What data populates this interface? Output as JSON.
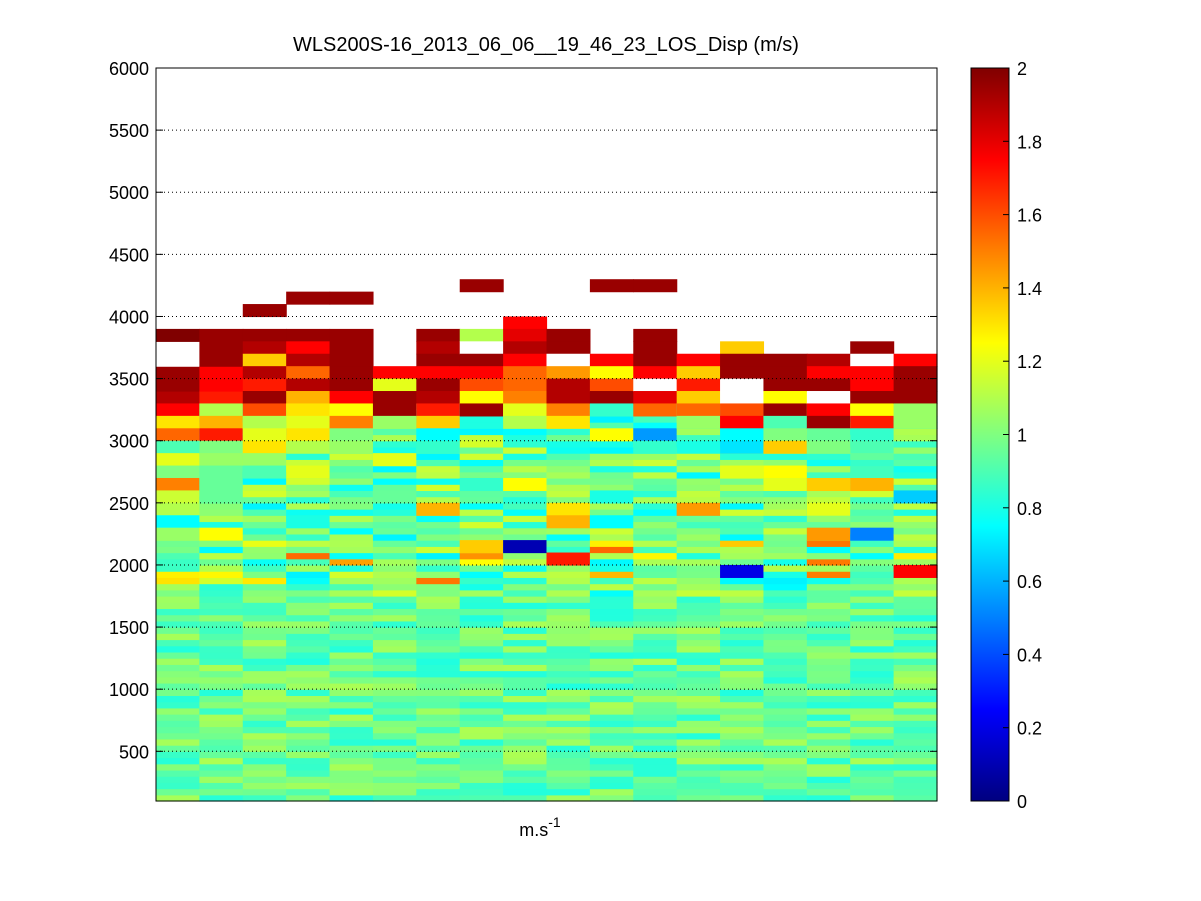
{
  "chart_data": {
    "type": "heatmap",
    "title": "WLS200S-16_2013_06_06__19_46_23_LOS_Disp (m/s)",
    "xlabel_base": "m.s",
    "xlabel_exp": "-1",
    "ylabel": "",
    "ylim": [
      100,
      6000
    ],
    "yticks": [
      500,
      1000,
      1500,
      2000,
      2500,
      3000,
      3500,
      4000,
      4500,
      5000,
      5500,
      6000
    ],
    "y_grid": "dotted",
    "colormap": "jet",
    "color_range": [
      0,
      2
    ],
    "colorbar_ticks": [
      0,
      0.2,
      0.4,
      0.6,
      0.8,
      1,
      1.2,
      1.4,
      1.6,
      1.8,
      2
    ],
    "colorbar_position": "right",
    "columns": 18,
    "grid": [
      {
        "column": 1,
        "range_bins": [
          [
            3300,
            3400,
            1.9
          ],
          [
            3400,
            3600,
            1.95
          ],
          [
            3600,
            3800,
            null
          ],
          [
            3800,
            3900,
            2.0
          ],
          [
            3200,
            3300,
            1.75
          ],
          [
            3100,
            3200,
            1.3
          ],
          [
            3000,
            3100,
            1.55
          ],
          [
            2900,
            3000,
            0.9
          ],
          [
            2800,
            2900,
            1.2
          ],
          [
            2700,
            2800,
            1.0
          ],
          [
            2600,
            2700,
            1.5
          ],
          [
            2500,
            2600,
            1.15
          ],
          [
            2400,
            2500,
            1.1
          ],
          [
            2300,
            2400,
            0.75
          ],
          [
            2200,
            2300,
            1.05
          ]
        ]
      },
      {
        "column": 2,
        "range_bins": [
          [
            3300,
            3400,
            1.7
          ],
          [
            3400,
            3600,
            1.75
          ],
          [
            3600,
            3900,
            1.95
          ],
          [
            3200,
            3300,
            1.1
          ],
          [
            3100,
            3200,
            1.4
          ],
          [
            3000,
            3100,
            1.7
          ],
          [
            2900,
            3000,
            1.0
          ],
          [
            2800,
            2900,
            1.05
          ],
          [
            2500,
            2800,
            0.95
          ],
          [
            2200,
            2300,
            1.25
          ]
        ]
      },
      {
        "column": 3,
        "range_bins": [
          [
            4000,
            4100,
            1.95
          ],
          [
            3800,
            3900,
            1.95
          ],
          [
            3700,
            3800,
            1.9
          ],
          [
            3600,
            3700,
            1.35
          ],
          [
            3500,
            3600,
            1.9
          ],
          [
            3400,
            3500,
            1.7
          ],
          [
            3300,
            3400,
            1.95
          ],
          [
            3200,
            3300,
            1.6
          ],
          [
            3100,
            3200,
            1.1
          ],
          [
            3000,
            3100,
            1.2
          ],
          [
            2900,
            3000,
            1.3
          ],
          [
            2800,
            2900,
            1.05
          ],
          [
            2700,
            2800,
            0.9
          ]
        ]
      },
      {
        "column": 4,
        "range_bins": [
          [
            4100,
            4200,
            1.95
          ],
          [
            3800,
            3900,
            1.95
          ],
          [
            3700,
            3800,
            1.75
          ],
          [
            3600,
            3700,
            1.9
          ],
          [
            3500,
            3600,
            1.55
          ],
          [
            3400,
            3500,
            1.9
          ],
          [
            3300,
            3400,
            1.4
          ],
          [
            3200,
            3300,
            1.3
          ],
          [
            3100,
            3200,
            1.2
          ],
          [
            3000,
            3100,
            1.3
          ],
          [
            2900,
            3000,
            1.1
          ],
          [
            2700,
            2800,
            1.2
          ],
          [
            2300,
            2400,
            0.8
          ]
        ]
      },
      {
        "column": 5,
        "range_bins": [
          [
            4100,
            4200,
            1.95
          ],
          [
            3600,
            3900,
            1.95
          ],
          [
            3400,
            3600,
            1.95
          ],
          [
            3300,
            3400,
            1.75
          ],
          [
            3200,
            3300,
            1.25
          ],
          [
            3100,
            3200,
            1.5
          ],
          [
            3000,
            3100,
            1.0
          ],
          [
            2900,
            3000,
            1.05
          ]
        ]
      },
      {
        "column": 6,
        "range_bins": [
          [
            3500,
            3600,
            1.75
          ],
          [
            3400,
            3500,
            1.2
          ],
          [
            3300,
            3400,
            1.95
          ],
          [
            3200,
            3300,
            1.95
          ],
          [
            3100,
            3200,
            1.05
          ],
          [
            2800,
            2900,
            1.2
          ],
          [
            2500,
            2600,
            0.95
          ]
        ]
      },
      {
        "column": 7,
        "range_bins": [
          [
            3800,
            3900,
            1.95
          ],
          [
            3700,
            3800,
            1.9
          ],
          [
            3600,
            3700,
            1.95
          ],
          [
            3500,
            3600,
            1.75
          ],
          [
            3400,
            3500,
            1.95
          ],
          [
            3300,
            3400,
            1.9
          ],
          [
            3200,
            3300,
            1.7
          ],
          [
            3100,
            3200,
            1.35
          ],
          [
            3000,
            3100,
            0.75
          ],
          [
            2900,
            3000,
            0.85
          ],
          [
            2400,
            2500,
            1.4
          ]
        ]
      },
      {
        "column": 8,
        "range_bins": [
          [
            4200,
            4300,
            1.95
          ],
          [
            3800,
            3900,
            1.1
          ],
          [
            3700,
            3800,
            null
          ],
          [
            3600,
            3700,
            1.95
          ],
          [
            3500,
            3600,
            1.75
          ],
          [
            3400,
            3500,
            1.6
          ],
          [
            3300,
            3400,
            1.25
          ],
          [
            3200,
            3300,
            1.95
          ],
          [
            2600,
            2700,
            0.85
          ],
          [
            2100,
            2200,
            1.35
          ]
        ]
      },
      {
        "column": 9,
        "range_bins": [
          [
            3900,
            4000,
            1.75
          ],
          [
            3800,
            3900,
            1.8
          ],
          [
            3700,
            3800,
            1.9
          ],
          [
            3600,
            3700,
            1.75
          ],
          [
            3400,
            3600,
            1.55
          ],
          [
            3300,
            3400,
            1.5
          ],
          [
            3200,
            3300,
            1.2
          ],
          [
            3100,
            3200,
            1.1
          ],
          [
            2600,
            2700,
            1.25
          ],
          [
            2100,
            2200,
            0.1
          ]
        ]
      },
      {
        "column": 10,
        "range_bins": [
          [
            3800,
            3900,
            1.95
          ],
          [
            3700,
            3800,
            1.95
          ],
          [
            3600,
            3700,
            null
          ],
          [
            3500,
            3600,
            1.45
          ],
          [
            3300,
            3500,
            1.9
          ],
          [
            3200,
            3300,
            1.5
          ],
          [
            3100,
            3200,
            1.3
          ],
          [
            2400,
            2500,
            1.3
          ],
          [
            2300,
            2400,
            1.4
          ],
          [
            2000,
            2100,
            1.7
          ]
        ]
      },
      {
        "column": 11,
        "range_bins": [
          [
            4200,
            4300,
            1.95
          ],
          [
            3600,
            3700,
            1.75
          ],
          [
            3500,
            3600,
            1.25
          ],
          [
            3400,
            3500,
            1.6
          ],
          [
            3300,
            3400,
            1.95
          ],
          [
            3200,
            3300,
            0.85
          ],
          [
            3000,
            3100,
            1.25
          ],
          [
            2500,
            2600,
            0.8
          ],
          [
            2300,
            2400,
            0.75
          ]
        ]
      },
      {
        "column": 12,
        "range_bins": [
          [
            4200,
            4300,
            1.95
          ],
          [
            3800,
            3900,
            1.95
          ],
          [
            3600,
            3800,
            1.95
          ],
          [
            3500,
            3600,
            1.75
          ],
          [
            3400,
            3500,
            null
          ],
          [
            3300,
            3400,
            1.8
          ],
          [
            3200,
            3300,
            1.55
          ],
          [
            3000,
            3100,
            0.55
          ],
          [
            2900,
            3000,
            0.85
          ]
        ]
      },
      {
        "column": 13,
        "range_bins": [
          [
            3600,
            3700,
            1.75
          ],
          [
            3500,
            3600,
            1.35
          ],
          [
            3400,
            3500,
            1.7
          ],
          [
            3300,
            3400,
            1.35
          ],
          [
            3200,
            3300,
            1.55
          ],
          [
            3100,
            3200,
            1.05
          ],
          [
            2900,
            3000,
            0.8
          ],
          [
            2400,
            2500,
            1.45
          ]
        ]
      },
      {
        "column": 14,
        "range_bins": [
          [
            3700,
            3800,
            1.35
          ],
          [
            3600,
            3700,
            1.95
          ],
          [
            3500,
            3600,
            1.95
          ],
          [
            3300,
            3500,
            null
          ],
          [
            3200,
            3300,
            1.6
          ],
          [
            3100,
            3200,
            1.75
          ],
          [
            3000,
            3100,
            0.75
          ],
          [
            2900,
            3000,
            0.7
          ],
          [
            2700,
            2800,
            1.2
          ],
          [
            1900,
            2000,
            0.2
          ]
        ]
      },
      {
        "column": 15,
        "range_bins": [
          [
            3600,
            3700,
            1.95
          ],
          [
            3500,
            3600,
            1.95
          ],
          [
            3400,
            3500,
            1.95
          ],
          [
            3300,
            3400,
            1.25
          ],
          [
            3200,
            3300,
            1.95
          ],
          [
            3100,
            3200,
            0.9
          ],
          [
            3000,
            3100,
            1.0
          ],
          [
            2900,
            3000,
            1.35
          ],
          [
            2700,
            2800,
            1.25
          ],
          [
            2600,
            2700,
            1.2
          ]
        ]
      },
      {
        "column": 16,
        "range_bins": [
          [
            3600,
            3700,
            1.9
          ],
          [
            3500,
            3600,
            1.75
          ],
          [
            3400,
            3500,
            1.95
          ],
          [
            3300,
            3400,
            null
          ],
          [
            3200,
            3300,
            1.75
          ],
          [
            3100,
            3200,
            1.95
          ],
          [
            3000,
            3100,
            0.95
          ],
          [
            2900,
            3000,
            1.0
          ],
          [
            2600,
            2700,
            1.35
          ],
          [
            2400,
            2500,
            1.2
          ],
          [
            2200,
            2300,
            1.45
          ]
        ]
      },
      {
        "column": 17,
        "range_bins": [
          [
            3700,
            3800,
            1.95
          ],
          [
            3600,
            3700,
            null
          ],
          [
            3500,
            3600,
            1.75
          ],
          [
            3400,
            3500,
            1.75
          ],
          [
            3300,
            3400,
            1.95
          ],
          [
            3200,
            3300,
            1.25
          ],
          [
            3100,
            3200,
            1.7
          ],
          [
            3000,
            3100,
            0.85
          ],
          [
            2900,
            3000,
            0.9
          ],
          [
            2600,
            2700,
            1.4
          ],
          [
            2200,
            2300,
            0.5
          ]
        ]
      },
      {
        "column": 18,
        "range_bins": [
          [
            3600,
            3700,
            1.75
          ],
          [
            3400,
            3600,
            1.95
          ],
          [
            3300,
            3400,
            1.95
          ],
          [
            3100,
            3300,
            1.05
          ],
          [
            2500,
            2600,
            0.65
          ],
          [
            1900,
            2000,
            1.75
          ]
        ]
      }
    ]
  }
}
